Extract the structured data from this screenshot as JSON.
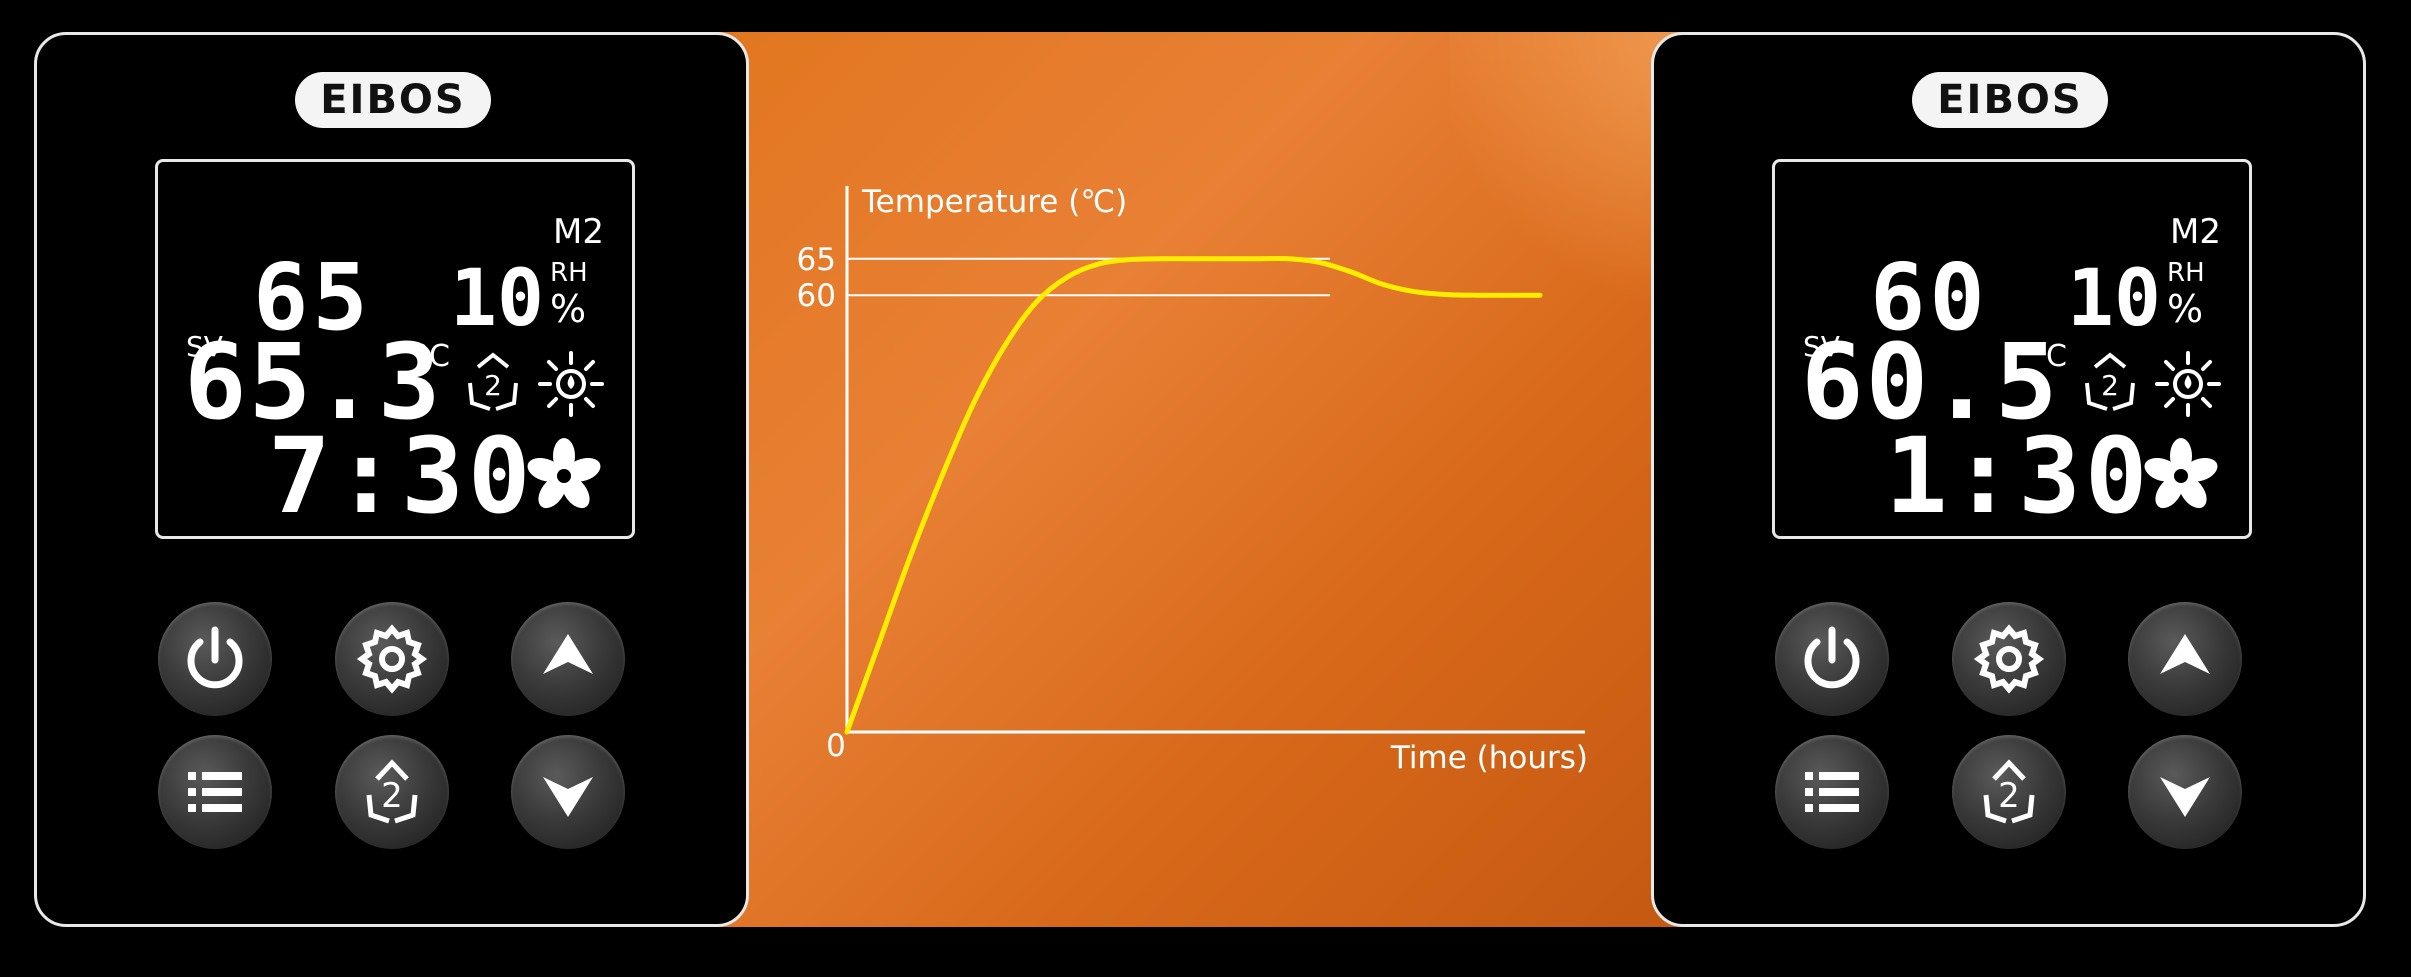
{
  "left_device": {
    "brand": "EIBOS",
    "mode": "M2",
    "sv_label": "SV",
    "setpoint": "65",
    "humidity": "10",
    "humidity_label": "RH",
    "humidity_unit": "%",
    "actual_temp": "65.3",
    "temp_unit": "°C",
    "timer": "7:30",
    "icons": [
      "power-icon",
      "gear-icon",
      "up-arrow-icon",
      "menu-list-icon",
      "mode-2-recycle-icon",
      "down-arrow-icon"
    ]
  },
  "right_device": {
    "brand": "EIBOS",
    "mode": "M2",
    "sv_label": "SV",
    "setpoint": "60",
    "humidity": "10",
    "humidity_label": "RH",
    "humidity_unit": "%",
    "actual_temp": "60.5",
    "temp_unit": "°C",
    "timer": "1:30",
    "icons": [
      "power-icon",
      "gear-icon",
      "up-arrow-icon",
      "menu-list-icon",
      "mode-2-recycle-icon",
      "down-arrow-icon"
    ]
  },
  "colors": {
    "curve": "#ffee00",
    "panel_orange": "#e07020",
    "device_border": "#e8e8e8"
  },
  "chart_data": {
    "type": "line",
    "ylabel": "Temperature (℃)",
    "xlabel": "Time (hours)",
    "y_ticks": [
      "65",
      "60"
    ],
    "origin_label": "0",
    "reference_lines": [
      65,
      60
    ],
    "ylim": [
      0,
      75
    ],
    "series": [
      {
        "x": [
          0,
          0.5,
          1,
          1.5,
          2,
          2.5,
          3,
          3.5,
          4,
          4.5,
          5,
          5.5,
          6,
          6.5,
          7,
          7.5,
          8,
          8.5,
          9,
          9.5,
          10,
          10.5,
          11
        ],
        "y": [
          0,
          12,
          24,
          35,
          45,
          53,
          59,
          62.5,
          64.3,
          64.9,
          65,
          65,
          65,
          65,
          65,
          64.5,
          63.2,
          61.5,
          60.5,
          60.1,
          60,
          60,
          60
        ]
      }
    ]
  }
}
